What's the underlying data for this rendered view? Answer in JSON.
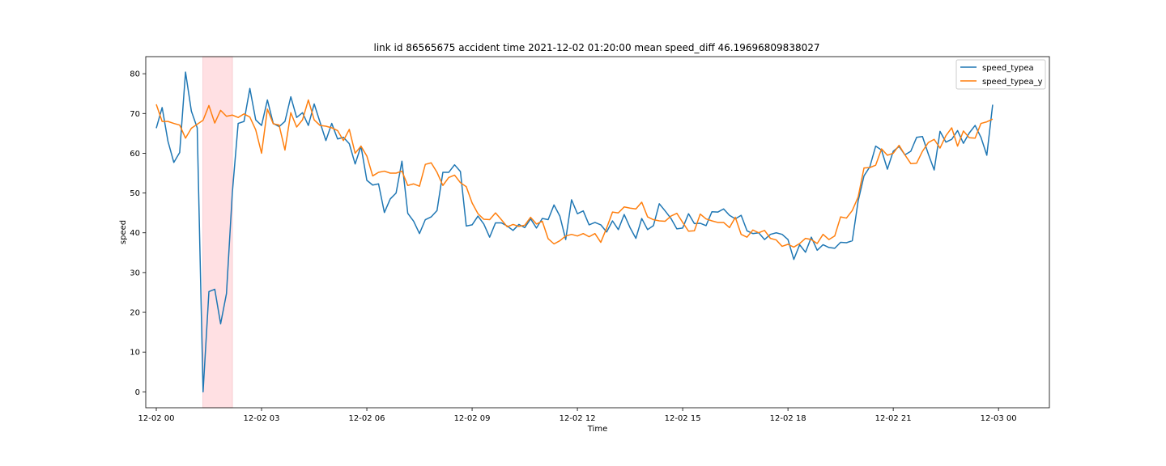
{
  "chart_data": {
    "type": "line",
    "title": "link id 86565675 accident time 2021-12-02 01:20:00 mean speed_diff 46.19696809838027",
    "xlabel": "Time",
    "ylabel": "speed",
    "x_range_hours": [
      -0.3,
      25.45
    ],
    "y_range": [
      -4.0,
      84.3
    ],
    "x_ticks": [
      {
        "hour": 0,
        "label": "12-02 00"
      },
      {
        "hour": 3,
        "label": "12-02 03"
      },
      {
        "hour": 6,
        "label": "12-02 06"
      },
      {
        "hour": 9,
        "label": "12-02 09"
      },
      {
        "hour": 12,
        "label": "12-02 12"
      },
      {
        "hour": 15,
        "label": "12-02 15"
      },
      {
        "hour": 18,
        "label": "12-02 18"
      },
      {
        "hour": 21,
        "label": "12-02 21"
      },
      {
        "hour": 24,
        "label": "12-03 00"
      }
    ],
    "y_ticks": [
      0,
      10,
      20,
      30,
      40,
      50,
      60,
      70,
      80
    ],
    "highlight_span_hours": [
      1.33,
      2.17
    ],
    "highlight_color": "#ffe0e3",
    "legend_position": "top-right",
    "x_step_minutes": 10,
    "series": [
      {
        "name": "speed_typea",
        "color": "#1f77b4",
        "values": [
          66.3,
          71.5,
          63.0,
          57.7,
          60.2,
          80.4,
          70.6,
          66.4,
          0.0,
          25.2,
          25.8,
          17.1,
          24.7,
          50.0,
          67.5,
          68.0,
          76.3,
          68.4,
          67.0,
          73.4,
          67.5,
          66.7,
          68.0,
          74.2,
          69.0,
          70.2,
          67.0,
          72.4,
          67.8,
          63.2,
          67.5,
          63.6,
          64.0,
          62.4,
          57.3,
          61.8,
          53.2,
          52.0,
          52.3,
          45.1,
          48.5,
          50.0,
          58.0,
          44.9,
          42.9,
          39.8,
          43.3,
          44.0,
          45.6,
          55.2,
          55.2,
          57.1,
          55.4,
          41.7,
          42.0,
          44.2,
          42.2,
          38.9,
          42.5,
          42.5,
          41.7,
          40.6,
          42.1,
          41.3,
          43.5,
          41.2,
          43.6,
          43.3,
          47.0,
          44.2,
          38.3,
          48.3,
          44.8,
          45.5,
          42.0,
          42.6,
          42.0,
          40.2,
          43.0,
          40.8,
          44.6,
          41.3,
          38.6,
          43.6,
          40.8,
          41.8,
          47.3,
          45.5,
          43.6,
          41.0,
          41.2,
          44.8,
          42.3,
          42.4,
          41.8,
          45.3,
          45.2,
          46.0,
          44.4,
          43.5,
          44.4,
          40.5,
          39.8,
          40.0,
          38.3,
          39.6,
          40.0,
          39.6,
          38.3,
          33.3,
          37.0,
          35.1,
          38.9,
          35.6,
          37.0,
          36.3,
          36.1,
          37.6,
          37.5,
          38.0,
          48.0,
          54.3,
          56.6,
          61.8,
          60.8,
          56.0,
          60.5,
          61.7,
          59.6,
          60.5,
          64.0,
          64.2,
          59.8,
          55.8,
          65.5,
          62.8,
          63.5,
          65.7,
          62.5,
          65.1,
          67.0,
          64.0,
          59.5,
          72.2
        ]
      },
      {
        "name": "speed_typea_y",
        "color": "#ff7f0e",
        "values": [
          72.3,
          68.0,
          68.0,
          67.5,
          67.1,
          63.8,
          66.3,
          67.3,
          68.3,
          72.0,
          67.6,
          70.8,
          69.3,
          69.6,
          69.0,
          69.9,
          69.1,
          65.9,
          60.0,
          71.1,
          67.4,
          67.1,
          60.8,
          70.2,
          66.6,
          68.4,
          73.4,
          68.4,
          67.0,
          66.8,
          66.4,
          65.7,
          63.2,
          66.0,
          60.0,
          61.8,
          59.3,
          54.3,
          55.2,
          55.5,
          55.0,
          55.0,
          55.5,
          51.9,
          52.3,
          51.7,
          57.2,
          57.6,
          55.2,
          51.9,
          53.9,
          54.5,
          52.6,
          51.6,
          47.5,
          44.8,
          43.4,
          43.3,
          45.0,
          43.3,
          41.5,
          42.1,
          41.6,
          41.9,
          43.9,
          42.2,
          42.9,
          38.5,
          37.2,
          38.0,
          39.2,
          39.6,
          39.2,
          39.8,
          39.0,
          39.8,
          37.6,
          41.2,
          45.2,
          45.0,
          46.5,
          46.2,
          46.0,
          47.7,
          44.0,
          43.3,
          43.0,
          42.9,
          44.2,
          44.9,
          42.6,
          40.4,
          40.5,
          44.7,
          43.5,
          43.0,
          42.6,
          42.6,
          41.3,
          43.9,
          39.6,
          38.9,
          40.7,
          40.0,
          40.6,
          38.6,
          38.2,
          36.6,
          37.1,
          36.4,
          37.3,
          38.6,
          38.3,
          37.3,
          39.6,
          38.3,
          39.2,
          44.0,
          43.7,
          45.6,
          49.0,
          56.3,
          56.4,
          57.0,
          61.1,
          59.5,
          60.0,
          62.0,
          59.6,
          57.4,
          57.5,
          60.5,
          62.7,
          63.5,
          61.3,
          64.4,
          66.4,
          61.8,
          65.6,
          63.9,
          63.8,
          67.5,
          67.9,
          68.6
        ]
      }
    ]
  }
}
